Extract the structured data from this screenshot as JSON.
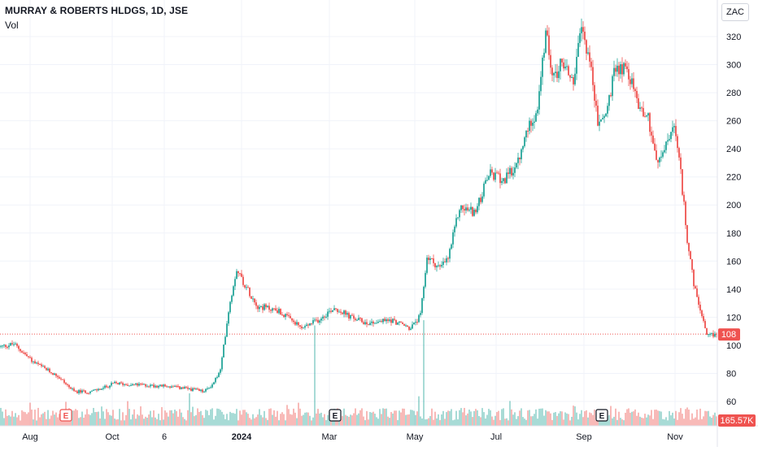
{
  "header": {
    "title": "MURRAY & ROBERTS HLDGS, 1D, JSE",
    "volume_label": "Vol",
    "currency": "ZAC"
  },
  "colors": {
    "up": "#26a69a",
    "down": "#ef5350",
    "grid": "#f0f3fa",
    "axis_text": "#131722",
    "last_price_bg": "#ef5350",
    "volume_bg": "#ef5350"
  },
  "chart_data": {
    "type": "candlestick",
    "title": "MURRAY & ROBERTS HLDGS, 1D, JSE",
    "ylim": [
      45,
      335
    ],
    "y_ticks": [
      60,
      80,
      100,
      120,
      140,
      160,
      180,
      200,
      220,
      240,
      260,
      280,
      300,
      320
    ],
    "x_ticks": [
      "Aug",
      "Oct",
      "6",
      "2024",
      "Mar",
      "May",
      "Jul",
      "Sep",
      "Nov"
    ],
    "last_price": "108",
    "last_volume": "165.57K",
    "grid": true,
    "earnings_markers": [
      "E",
      "E",
      "E"
    ],
    "price_path": [
      {
        "i": 0,
        "p": 99
      },
      {
        "i": 8,
        "p": 101
      },
      {
        "i": 20,
        "p": 88
      },
      {
        "i": 35,
        "p": 78
      },
      {
        "i": 45,
        "p": 67
      },
      {
        "i": 55,
        "p": 67
      },
      {
        "i": 62,
        "p": 69
      },
      {
        "i": 70,
        "p": 73
      },
      {
        "i": 80,
        "p": 72
      },
      {
        "i": 100,
        "p": 71
      },
      {
        "i": 115,
        "p": 69
      },
      {
        "i": 125,
        "p": 67
      },
      {
        "i": 130,
        "p": 72
      },
      {
        "i": 135,
        "p": 82
      },
      {
        "i": 140,
        "p": 125
      },
      {
        "i": 145,
        "p": 155
      },
      {
        "i": 150,
        "p": 143
      },
      {
        "i": 158,
        "p": 128
      },
      {
        "i": 170,
        "p": 125
      },
      {
        "i": 185,
        "p": 112
      },
      {
        "i": 195,
        "p": 118
      },
      {
        "i": 205,
        "p": 127
      },
      {
        "i": 215,
        "p": 120
      },
      {
        "i": 225,
        "p": 116
      },
      {
        "i": 240,
        "p": 118
      },
      {
        "i": 252,
        "p": 112
      },
      {
        "i": 258,
        "p": 121
      },
      {
        "i": 262,
        "p": 163
      },
      {
        "i": 270,
        "p": 155
      },
      {
        "i": 275,
        "p": 162
      },
      {
        "i": 282,
        "p": 198
      },
      {
        "i": 292,
        "p": 195
      },
      {
        "i": 300,
        "p": 222
      },
      {
        "i": 310,
        "p": 218
      },
      {
        "i": 318,
        "p": 230
      },
      {
        "i": 325,
        "p": 258
      },
      {
        "i": 330,
        "p": 268
      },
      {
        "i": 335,
        "p": 322
      },
      {
        "i": 340,
        "p": 290
      },
      {
        "i": 345,
        "p": 303
      },
      {
        "i": 352,
        "p": 288
      },
      {
        "i": 357,
        "p": 326
      },
      {
        "i": 362,
        "p": 304
      },
      {
        "i": 367,
        "p": 258
      },
      {
        "i": 372,
        "p": 265
      },
      {
        "i": 378,
        "p": 298
      },
      {
        "i": 385,
        "p": 297
      },
      {
        "i": 392,
        "p": 272
      },
      {
        "i": 398,
        "p": 262
      },
      {
        "i": 404,
        "p": 228
      },
      {
        "i": 410,
        "p": 246
      },
      {
        "i": 414,
        "p": 255
      },
      {
        "i": 418,
        "p": 222
      },
      {
        "i": 422,
        "p": 176
      },
      {
        "i": 426,
        "p": 143
      },
      {
        "i": 430,
        "p": 125
      },
      {
        "i": 434,
        "p": 106
      },
      {
        "i": 440,
        "p": 108
      }
    ],
    "volume_spikes": [
      {
        "i": 193,
        "v": 0.95
      },
      {
        "i": 260,
        "v": 1.0
      }
    ]
  }
}
